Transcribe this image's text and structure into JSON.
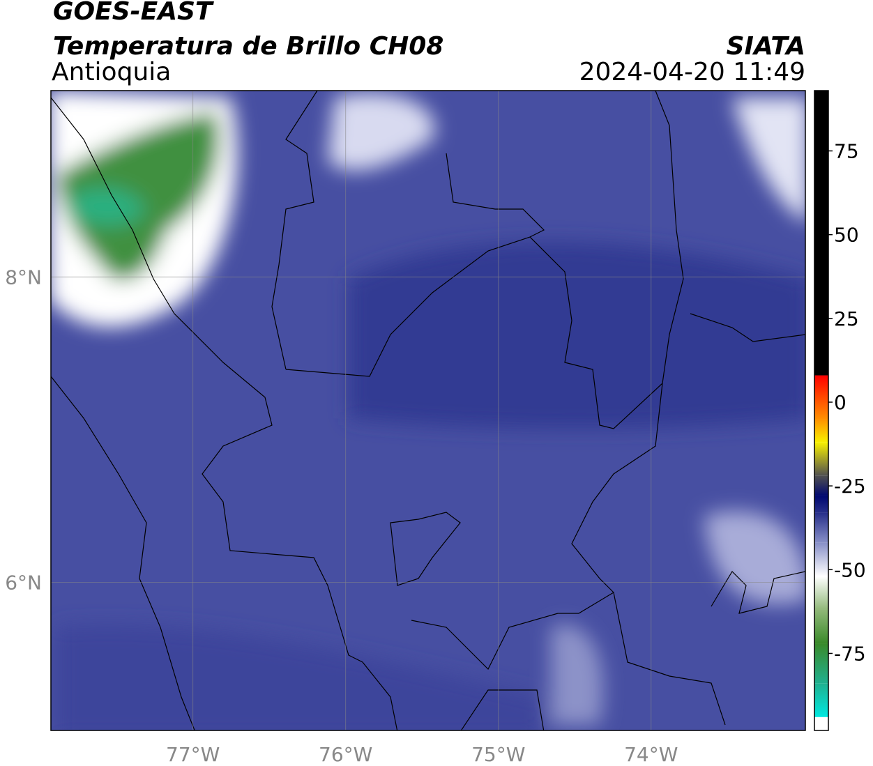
{
  "chart_data": {
    "type": "map",
    "title": "GOES-EAST",
    "subtitle": "Temperatura de Brillo CH08",
    "region": "Antioquia",
    "source": "SIATA",
    "datetime": "2024-04-20 11:49",
    "xlim": [
      -77.93,
      -72.99
    ],
    "ylim": [
      5.03,
      9.22
    ],
    "xticks": [
      {
        "value": -77,
        "label": "77°W"
      },
      {
        "value": -76,
        "label": "76°W"
      },
      {
        "value": -75,
        "label": "75°W"
      },
      {
        "value": -74,
        "label": "74°W"
      }
    ],
    "yticks": [
      {
        "value": 6,
        "label": "6°N"
      },
      {
        "value": 8,
        "label": "8°N"
      }
    ],
    "grid": true,
    "clim": [
      -98,
      93
    ],
    "cticks": [
      -75,
      -50,
      -25,
      0,
      25,
      50,
      75
    ],
    "colormap": [
      {
        "value": -98,
        "color": "#ffffff"
      },
      {
        "value": -94,
        "color": "#ffffff"
      },
      {
        "value": -94,
        "color": "#00e8e0"
      },
      {
        "value": -84,
        "color": "#20b090"
      },
      {
        "value": -72,
        "color": "#3a8a2a"
      },
      {
        "value": -62,
        "color": "#90b878"
      },
      {
        "value": -52,
        "color": "#ffffff"
      },
      {
        "value": -42,
        "color": "#8890c8"
      },
      {
        "value": -33,
        "color": "#28308a"
      },
      {
        "value": -28,
        "color": "#000870"
      },
      {
        "value": -22,
        "color": "#505050"
      },
      {
        "value": -12,
        "color": "#f8f000"
      },
      {
        "value": -5,
        "color": "#ff9000"
      },
      {
        "value": 8,
        "color": "#ff0000"
      },
      {
        "value": 8,
        "color": "#000000"
      },
      {
        "value": 93,
        "color": "#000000"
      }
    ]
  }
}
